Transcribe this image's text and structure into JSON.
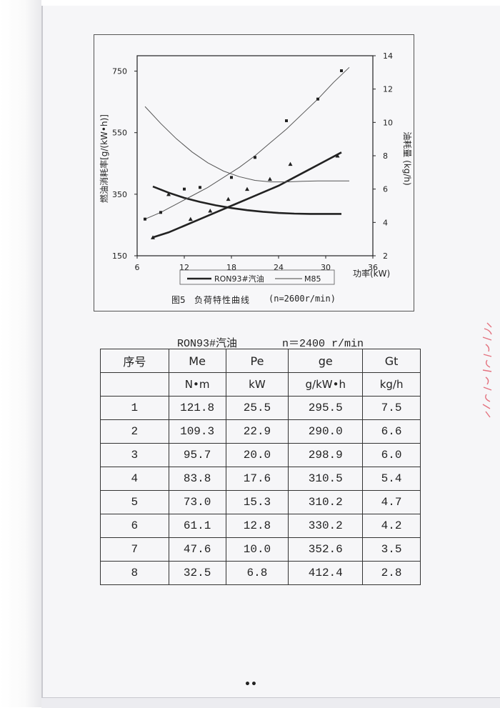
{
  "figure": {
    "legend": {
      "series1": "RON93#汽油",
      "series2": "M85"
    },
    "axis_left_label": "燃油消耗率[g/(kW•h)]",
    "axis_right_label": "油耗量 (kg/h)",
    "axis_x_label": "功率(kW)",
    "caption_number": "图5",
    "caption_title": "负荷特性曲线",
    "caption_condition": "(n=2600r/min)"
  },
  "chart_data": {
    "type": "line",
    "xlabel": "功率(kW)",
    "ylabel": "燃油消耗率[g/(kW•h)]",
    "y2label": "油耗量 (kg/h)",
    "xlim": [
      6,
      36
    ],
    "ylim": [
      150,
      800
    ],
    "y2lim": [
      2,
      14
    ],
    "x_ticks": [
      "6",
      "12",
      "18",
      "24",
      "30",
      "36"
    ],
    "y_ticks": [
      "150",
      "350",
      "550",
      "750"
    ],
    "y2_ticks": [
      "2",
      "4",
      "6",
      "8",
      "10",
      "12",
      "14"
    ],
    "legend": [
      "RON93#汽油",
      "M85"
    ],
    "series": [
      {
        "name": "RON93#汽油",
        "metric": "ge",
        "axis": "left",
        "style": "thick",
        "x": [
          8,
          10,
          12,
          14,
          16,
          18,
          20,
          22,
          24,
          26,
          28,
          30,
          32
        ],
        "y": [
          375,
          355,
          338,
          325,
          314,
          305,
          298,
          293,
          289,
          287,
          286,
          286,
          286
        ]
      },
      {
        "name": "RON93#汽油",
        "metric": "Gt",
        "axis": "right",
        "style": "thick",
        "x": [
          8,
          10,
          12,
          14,
          16,
          18,
          20,
          22,
          24,
          26,
          28,
          30,
          32
        ],
        "y": [
          3.1,
          3.4,
          3.8,
          4.2,
          4.6,
          5.0,
          5.4,
          5.8,
          6.2,
          6.7,
          7.2,
          7.7,
          8.2
        ]
      },
      {
        "name": "M85",
        "metric": "ge",
        "axis": "left",
        "style": "thin",
        "x": [
          7,
          9,
          11,
          13,
          15,
          17,
          19,
          21,
          23,
          25,
          27,
          29,
          31,
          33
        ],
        "y": [
          635,
          580,
          530,
          487,
          452,
          425,
          407,
          395,
          390,
          390,
          392,
          393,
          393,
          393
        ]
      },
      {
        "name": "M85",
        "metric": "Gt",
        "axis": "right",
        "style": "thin",
        "x": [
          7,
          9,
          11,
          13,
          15,
          17,
          19,
          21,
          23,
          25,
          27,
          29,
          31,
          33
        ],
        "y": [
          4.2,
          4.6,
          5.1,
          5.6,
          6.1,
          6.7,
          7.3,
          8.0,
          8.8,
          9.6,
          10.5,
          11.4,
          12.4,
          13.3
        ]
      }
    ],
    "markers": [
      {
        "series": "M85",
        "axis": "right",
        "symbol": "square",
        "x": [
          7,
          9,
          12,
          14,
          18,
          21,
          25,
          29,
          32
        ],
        "y": [
          4.2,
          4.6,
          6.0,
          6.1,
          6.7,
          7.9,
          10.1,
          11.4,
          13.1
        ]
      },
      {
        "series": "RON93#汽油",
        "axis": "right",
        "symbol": "triangle",
        "x": [
          8,
          12.8,
          15.3,
          17.6,
          20.0,
          22.9,
          25.5,
          31.5
        ],
        "y": [
          3.1,
          4.2,
          4.7,
          5.4,
          6.0,
          6.6,
          7.5,
          8.0
        ]
      },
      {
        "series": "RON93#汽油",
        "axis": "left",
        "symbol": "triangle",
        "x": [
          10
        ],
        "y": [
          350
        ]
      }
    ]
  },
  "table": {
    "title": "RON93#汽油       n＝2400 r/min",
    "headers": [
      "序号",
      "Me",
      "Pe",
      "ge",
      "Gt"
    ],
    "units": [
      "",
      "N•m",
      "kW",
      "g/kW•h",
      "kg/h"
    ],
    "rows": [
      [
        "1",
        "121.8",
        "25.5",
        "295.5",
        "7.5"
      ],
      [
        "2",
        "109.3",
        "22.9",
        "290.0",
        "6.6"
      ],
      [
        "3",
        "95.7",
        "20.0",
        "298.9",
        "6.0"
      ],
      [
        "4",
        "83.8",
        "17.6",
        "310.5",
        "5.4"
      ],
      [
        "5",
        "73.0",
        "15.3",
        "310.2",
        "4.7"
      ],
      [
        "6",
        "61.1",
        "12.8",
        "330.2",
        "4.2"
      ],
      [
        "7",
        "47.6",
        "10.0",
        "352.6",
        "3.5"
      ],
      [
        "8",
        "32.5",
        "6.8",
        "412.4",
        "2.8"
      ]
    ]
  },
  "page_marker": "••",
  "colors": {
    "ink": "#222222",
    "paper": "#f6f6f8",
    "stamp": "#e05a6a"
  }
}
